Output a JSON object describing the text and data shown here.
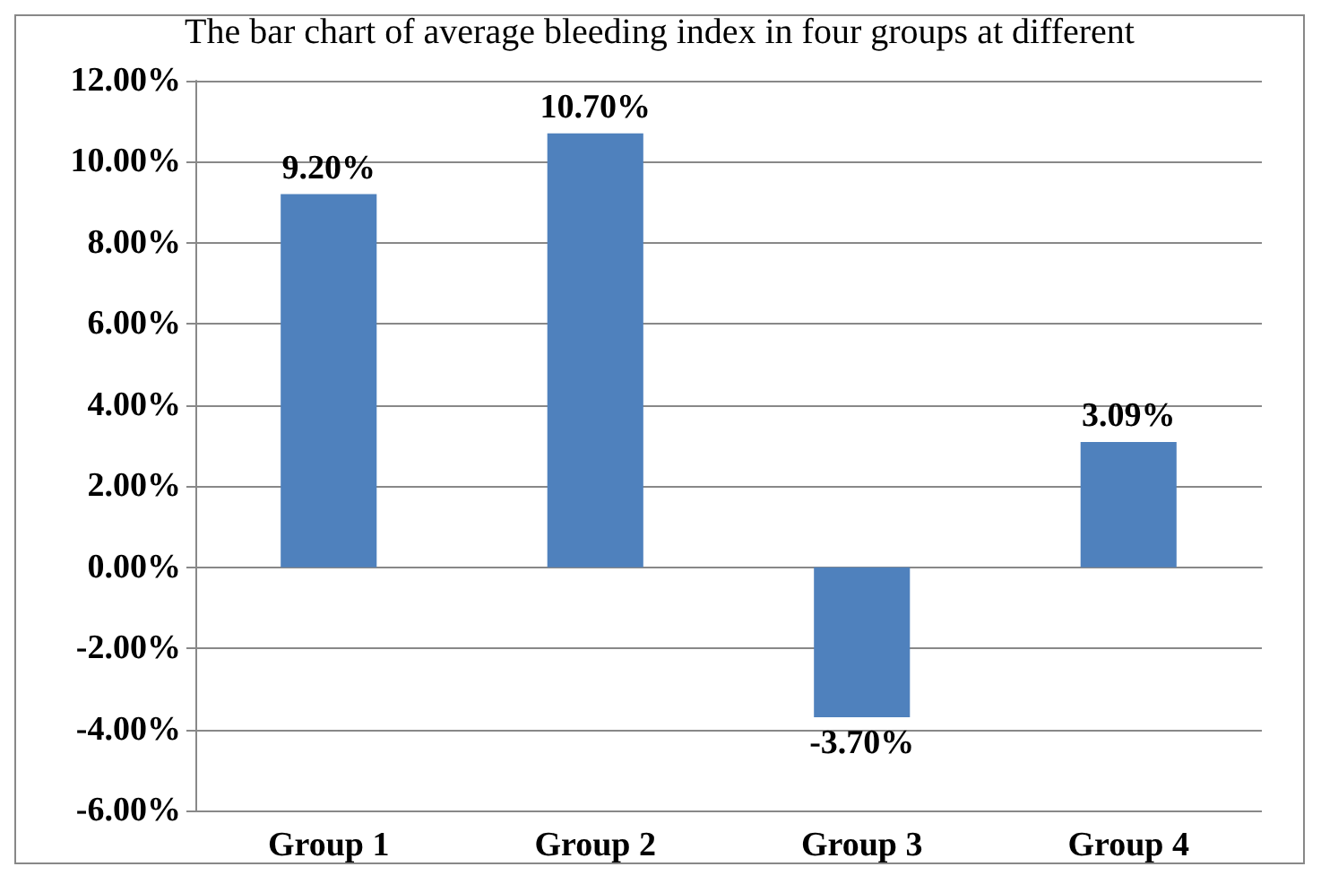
{
  "chart_data": {
    "type": "bar",
    "title": "The bar chart of average bleeding index in four groups at different",
    "categories": [
      "Group 1",
      "Group 2",
      "Group 3",
      "Group 4"
    ],
    "values": [
      9.2,
      10.7,
      -3.7,
      3.09
    ],
    "color": "#4f81bd",
    "value_labels": [
      "9.20%",
      "10.70%",
      "-3.70%",
      "3.09%"
    ],
    "ylim": [
      -6,
      12
    ],
    "yticks": [
      {
        "value": -6,
        "label": "-6.00%"
      },
      {
        "value": -4,
        "label": "-4.00%"
      },
      {
        "value": -2,
        "label": "-2.00%"
      },
      {
        "value": 0,
        "label": "0.00%"
      },
      {
        "value": 2,
        "label": "2.00%"
      },
      {
        "value": 4,
        "label": "4.00%"
      },
      {
        "value": 6,
        "label": "6.00%"
      },
      {
        "value": 8,
        "label": "8.00%"
      },
      {
        "value": 10,
        "label": "10.00%"
      },
      {
        "value": 12,
        "label": "12.00%"
      }
    ],
    "grid": "y"
  }
}
